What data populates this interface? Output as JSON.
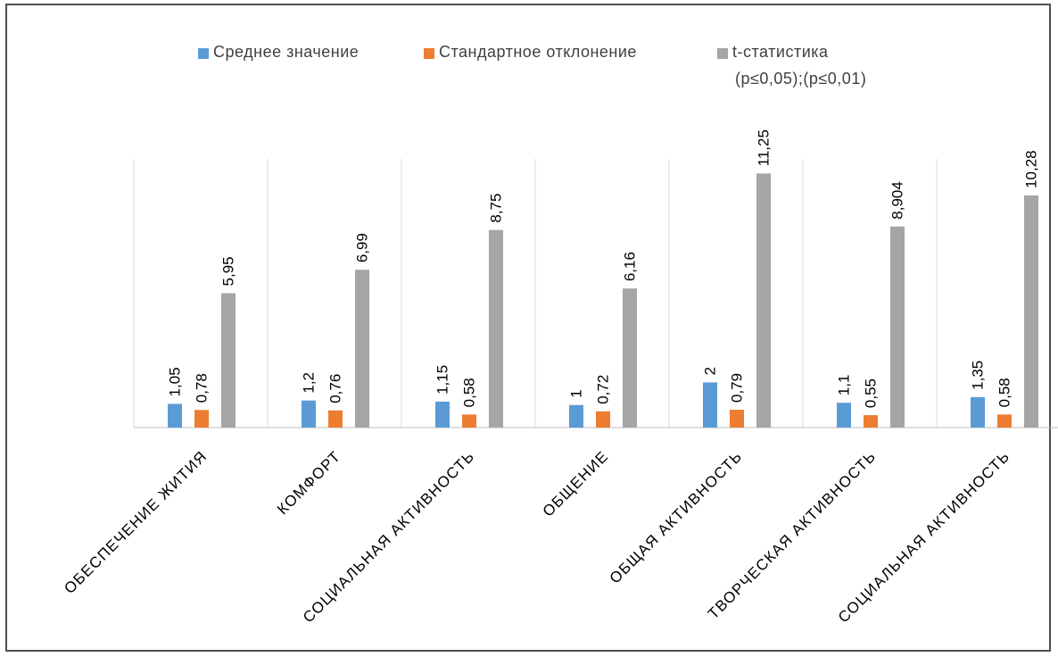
{
  "chart_data": {
    "type": "bar",
    "categories": [
      "ОБЕСПЕЧЕНИЕ ЖИТИЯ",
      "КОМФОРТ",
      "СОЦИАЛЬНАЯ АКТИВНОСТЬ",
      "ОБЩЕНИЕ",
      "ОБЩАЯ АКТИВНОСТЬ",
      "ТВОРЧЕСКАЯ АКТИВНОСТЬ",
      "СОЦИАЛЬНАЯ АКТИВНОСТЬ"
    ],
    "series": [
      {
        "name": "Среднее значение",
        "color": "#5b9bd5",
        "values": [
          1.05,
          1.2,
          1.15,
          1,
          2,
          1.1,
          1.35
        ],
        "labels": [
          "1,05",
          "1,2",
          "1,15",
          "1",
          "2",
          "1,1",
          "1,35"
        ]
      },
      {
        "name": "Стандартное отклонение",
        "color": "#ed7d31",
        "values": [
          0.78,
          0.76,
          0.58,
          0.72,
          0.79,
          0.55,
          0.58
        ],
        "labels": [
          "0,78",
          "0,76",
          "0,58",
          "0,72",
          "0,79",
          "0,55",
          "0,58"
        ]
      },
      {
        "name": "t-статистика",
        "name_line2": "(p≤0,05);(p≤0,01)",
        "color": "#a5a5a5",
        "values": [
          5.95,
          6.99,
          8.75,
          6.16,
          11.25,
          8.904,
          10.28
        ],
        "labels": [
          "5,95",
          "6,99",
          "8,75",
          "6,16",
          "11,25",
          "8,904",
          "10,28"
        ]
      }
    ],
    "title": "",
    "xlabel": "",
    "ylabel": "",
    "ylim": [
      0,
      12
    ],
    "grid": "vertical category separators",
    "legend": "top"
  }
}
